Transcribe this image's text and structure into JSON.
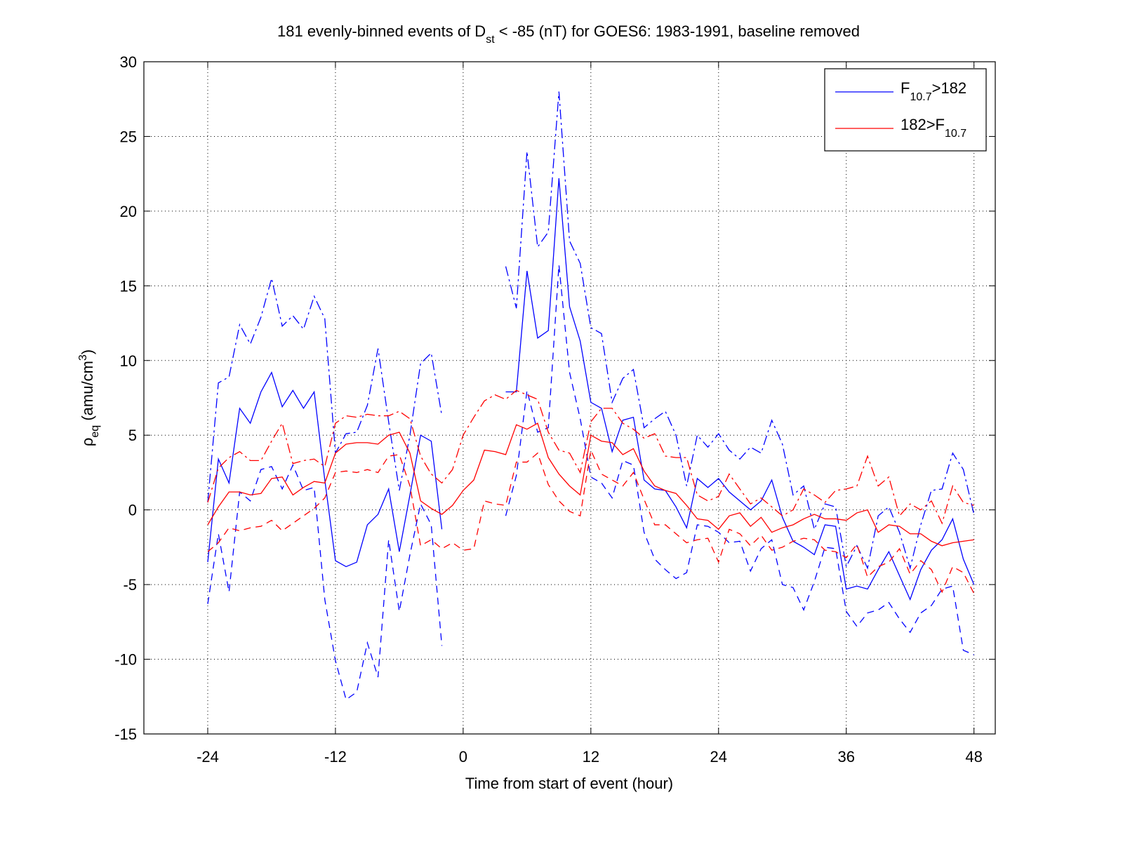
{
  "chart_data": {
    "type": "line",
    "title": [
      "181 evenly-binned events of D",
      "st",
      " < -85 (nT) for GOES6: 1983-1991, baseline removed"
    ],
    "xlabel": "Time from start of event (hour)",
    "ylabel": [
      "ρ",
      "eq",
      " (amu/cm",
      "3",
      ")"
    ],
    "x": [
      -24,
      -23,
      -22,
      -21,
      -20,
      -19,
      -18,
      -17,
      -16,
      -15,
      -14,
      -13,
      -12,
      -11,
      -10,
      -9,
      -8,
      -7,
      -6,
      -5,
      -4,
      -3,
      -2,
      -1,
      0,
      1,
      2,
      3,
      4,
      5,
      6,
      7,
      8,
      9,
      10,
      11,
      12,
      13,
      14,
      15,
      16,
      17,
      18,
      19,
      20,
      21,
      22,
      23,
      24,
      25,
      26,
      27,
      28,
      29,
      30,
      31,
      32,
      33,
      34,
      35,
      36,
      37,
      38,
      39,
      40,
      41,
      42,
      43,
      44,
      45,
      46,
      47,
      48
    ],
    "series": [
      {
        "name": [
          "F",
          "10.7",
          ">182"
        ],
        "color": "#0000ff",
        "values": [
          -3.5,
          3.4,
          1.8,
          6.8,
          5.8,
          7.9,
          9.2,
          6.9,
          8.0,
          6.8,
          7.9,
          2.0,
          -3.4,
          -3.8,
          -3.5,
          -1.0,
          -0.3,
          1.4,
          -2.8,
          1.0,
          5.0,
          4.6,
          -1.3,
          null,
          null,
          null,
          null,
          null,
          7.9,
          7.9,
          16.0,
          11.5,
          12.0,
          22.2,
          13.6,
          11.3,
          7.2,
          6.8,
          3.9,
          6.0,
          6.2,
          2.0,
          1.4,
          1.3,
          0.2,
          -1.2,
          2.1,
          1.5,
          2.1,
          1.2,
          0.6,
          0.0,
          0.6,
          2.0,
          -0.5,
          -2.1,
          -2.5,
          -3.0,
          -1.0,
          -1.1,
          -5.3,
          -5.1,
          -5.3,
          -4.0,
          -2.8,
          -4.4,
          -6.0,
          -4.0,
          -2.7,
          -2.0,
          -0.6,
          -3.3,
          -5.0
        ],
        "upper": [
          0.5,
          8.5,
          8.9,
          12.4,
          11.1,
          12.9,
          15.5,
          12.3,
          13.0,
          12.1,
          14.3,
          12.8,
          3.8,
          5.1,
          5.2,
          7.0,
          10.8,
          5.9,
          1.3,
          5.0,
          9.8,
          10.5,
          6.3,
          null,
          null,
          null,
          null,
          null,
          16.3,
          13.5,
          24.0,
          17.6,
          18.6,
          28.0,
          18.0,
          16.5,
          12.2,
          11.8,
          7.2,
          8.8,
          9.4,
          5.5,
          6.1,
          6.6,
          5.0,
          1.6,
          5.0,
          4.2,
          5.1,
          4.0,
          3.4,
          4.2,
          3.8,
          6.0,
          4.4,
          1.0,
          1.6,
          -1.3,
          0.4,
          0.2,
          -3.8,
          -2.4,
          -3.9,
          -0.4,
          0.2,
          -1.5,
          -3.9,
          -1.0,
          1.3,
          1.4,
          3.8,
          2.7,
          -0.3
        ],
        "lower": [
          -6.3,
          -1.6,
          -5.5,
          1.2,
          0.6,
          2.7,
          2.9,
          1.4,
          3.0,
          1.3,
          1.5,
          -6.0,
          -10.1,
          -12.7,
          -12.2,
          -8.9,
          -11.2,
          -2.0,
          -6.8,
          -3.0,
          0.4,
          -1.0,
          -9.1,
          null,
          null,
          null,
          null,
          null,
          -0.4,
          2.3,
          8.0,
          5.2,
          5.5,
          16.4,
          9.2,
          6.1,
          2.2,
          1.8,
          0.8,
          3.3,
          3.0,
          -1.5,
          -3.3,
          -4.0,
          -4.6,
          -4.2,
          -1.0,
          -1.1,
          -1.5,
          -2.2,
          -2.1,
          -4.1,
          -2.6,
          -2.0,
          -5.0,
          -5.2,
          -6.7,
          -4.8,
          -2.5,
          -2.6,
          -6.8,
          -7.8,
          -6.9,
          -6.7,
          -6.2,
          -7.3,
          -8.2,
          -6.9,
          -6.4,
          -5.3,
          -5.1,
          -9.4,
          -9.7
        ]
      },
      {
        "name": [
          "182>F",
          "10.7"
        ],
        "color": "#ff0000",
        "values": [
          -1.0,
          0.2,
          1.2,
          1.2,
          1.0,
          1.1,
          2.1,
          2.2,
          1.0,
          1.5,
          1.9,
          1.8,
          3.8,
          4.4,
          4.5,
          4.5,
          4.4,
          5.0,
          5.2,
          3.8,
          0.6,
          0.1,
          -0.3,
          0.3,
          1.3,
          2.0,
          4.0,
          3.9,
          3.7,
          5.7,
          5.4,
          5.8,
          3.5,
          2.4,
          1.6,
          1.0,
          5.0,
          4.6,
          4.5,
          3.7,
          4.1,
          2.6,
          1.6,
          1.3,
          1.1,
          0.3,
          -0.6,
          -0.7,
          -1.3,
          -0.4,
          -0.2,
          -1.1,
          -0.5,
          -1.5,
          -1.2,
          -1.0,
          -0.6,
          -0.3,
          -0.6,
          -0.6,
          -0.7,
          -0.2,
          0.0,
          -1.5,
          -1.0,
          -1.1,
          -1.6,
          -1.6,
          -2.1,
          -2.4,
          -2.2,
          -2.1,
          -2.0
        ],
        "upper": [
          0.5,
          2.8,
          3.5,
          3.9,
          3.3,
          3.3,
          4.6,
          5.8,
          3.1,
          3.3,
          3.4,
          2.9,
          5.8,
          6.3,
          6.2,
          6.4,
          6.3,
          6.3,
          6.6,
          6.1,
          3.6,
          2.4,
          1.8,
          2.7,
          5.0,
          6.2,
          7.3,
          7.7,
          7.4,
          8.0,
          7.7,
          7.4,
          5.2,
          4.0,
          3.8,
          2.5,
          5.9,
          6.8,
          6.8,
          5.8,
          5.4,
          4.8,
          5.1,
          3.6,
          3.5,
          3.5,
          1.0,
          0.6,
          0.9,
          2.4,
          1.4,
          0.4,
          0.8,
          0.2,
          -0.4,
          0.0,
          1.4,
          1.0,
          0.5,
          1.3,
          1.4,
          1.6,
          3.6,
          1.6,
          2.2,
          -0.4,
          0.4,
          0.0,
          0.6,
          -0.9,
          1.6,
          0.5,
          0.3
        ],
        "lower": [
          -2.8,
          -2.2,
          -1.2,
          -1.4,
          -1.2,
          -1.1,
          -0.7,
          -1.4,
          -0.9,
          -0.4,
          0.1,
          0.8,
          2.5,
          2.6,
          2.5,
          2.7,
          2.5,
          3.6,
          3.7,
          1.6,
          -2.4,
          -2.0,
          -2.6,
          -2.2,
          -2.7,
          -2.6,
          0.6,
          0.4,
          0.3,
          3.2,
          3.2,
          3.8,
          1.7,
          0.6,
          -0.1,
          -0.4,
          4.0,
          2.4,
          2.0,
          1.6,
          2.5,
          0.7,
          -1.0,
          -1.0,
          -1.6,
          -2.2,
          -2.0,
          -1.9,
          -3.5,
          -1.3,
          -1.6,
          -2.4,
          -1.7,
          -2.7,
          -2.5,
          -2.1,
          -1.9,
          -2.0,
          -2.7,
          -2.8,
          -3.2,
          -2.3,
          -4.5,
          -3.8,
          -3.5,
          -2.6,
          -4.3,
          -3.4,
          -4.0,
          -5.5,
          -3.8,
          -4.2,
          -5.6
        ]
      }
    ],
    "xlim": [
      -30,
      50
    ],
    "xticks": [
      -24,
      -12,
      0,
      12,
      24,
      36,
      48
    ],
    "ylim": [
      -15,
      30
    ],
    "yticks": [
      -15,
      -10,
      -5,
      0,
      5,
      10,
      15,
      20,
      25,
      30
    ],
    "grid": true,
    "legend": "upper right"
  }
}
